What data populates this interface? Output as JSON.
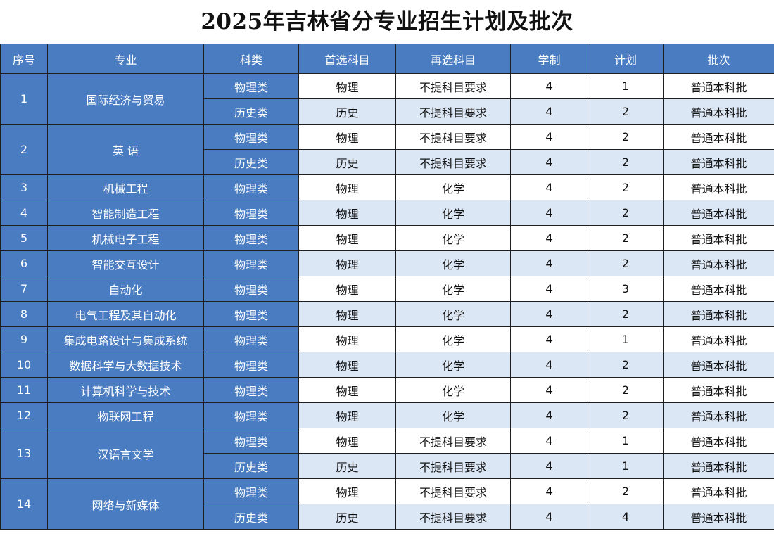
{
  "title": "2025年吉林省分专业招生计划及批次",
  "headers": [
    "序号",
    "专业",
    "科类",
    "首选科目",
    "再选科目",
    "学制",
    "计划",
    "批次"
  ],
  "rows": [
    {
      "no": "1",
      "major": "国际经济与贸易",
      "subs": [
        {
          "type": "物理类",
          "first": "物理",
          "second": "不提科目要求",
          "years": "4",
          "plan": "1",
          "batch": "普通本科批"
        },
        {
          "type": "历史类",
          "first": "历史",
          "second": "不提科目要求",
          "years": "4",
          "plan": "2",
          "batch": "普通本科批"
        }
      ]
    },
    {
      "no": "2",
      "major": "英 语",
      "subs": [
        {
          "type": "物理类",
          "first": "物理",
          "second": "不提科目要求",
          "years": "4",
          "plan": "2",
          "batch": "普通本科批"
        },
        {
          "type": "历史类",
          "first": "历史",
          "second": "不提科目要求",
          "years": "4",
          "plan": "2",
          "batch": "普通本科批"
        }
      ]
    },
    {
      "no": "3",
      "major": "机械工程",
      "subs": [
        {
          "type": "物理类",
          "first": "物理",
          "second": "化学",
          "years": "4",
          "plan": "2",
          "batch": "普通本科批"
        }
      ]
    },
    {
      "no": "4",
      "major": "智能制造工程",
      "subs": [
        {
          "type": "物理类",
          "first": "物理",
          "second": "化学",
          "years": "4",
          "plan": "2",
          "batch": "普通本科批"
        }
      ]
    },
    {
      "no": "5",
      "major": "机械电子工程",
      "subs": [
        {
          "type": "物理类",
          "first": "物理",
          "second": "化学",
          "years": "4",
          "plan": "2",
          "batch": "普通本科批"
        }
      ]
    },
    {
      "no": "6",
      "major": "智能交互设计",
      "subs": [
        {
          "type": "物理类",
          "first": "物理",
          "second": "化学",
          "years": "4",
          "plan": "2",
          "batch": "普通本科批"
        }
      ]
    },
    {
      "no": "7",
      "major": "自动化",
      "subs": [
        {
          "type": "物理类",
          "first": "物理",
          "second": "化学",
          "years": "4",
          "plan": "3",
          "batch": "普通本科批"
        }
      ]
    },
    {
      "no": "8",
      "major": "电气工程及其自动化",
      "subs": [
        {
          "type": "物理类",
          "first": "物理",
          "second": "化学",
          "years": "4",
          "plan": "2",
          "batch": "普通本科批"
        }
      ]
    },
    {
      "no": "9",
      "major": "集成电路设计与集成系统",
      "subs": [
        {
          "type": "物理类",
          "first": "物理",
          "second": "化学",
          "years": "4",
          "plan": "1",
          "batch": "普通本科批"
        }
      ]
    },
    {
      "no": "10",
      "major": "数据科学与大数据技术",
      "subs": [
        {
          "type": "物理类",
          "first": "物理",
          "second": "化学",
          "years": "4",
          "plan": "2",
          "batch": "普通本科批"
        }
      ]
    },
    {
      "no": "11",
      "major": "计算机科学与技术",
      "subs": [
        {
          "type": "物理类",
          "first": "物理",
          "second": "化学",
          "years": "4",
          "plan": "2",
          "batch": "普通本科批"
        }
      ]
    },
    {
      "no": "12",
      "major": "物联网工程",
      "subs": [
        {
          "type": "物理类",
          "first": "物理",
          "second": "化学",
          "years": "4",
          "plan": "2",
          "batch": "普通本科批"
        }
      ]
    },
    {
      "no": "13",
      "major": "汉语言文学",
      "subs": [
        {
          "type": "物理类",
          "first": "物理",
          "second": "不提科目要求",
          "years": "4",
          "plan": "1",
          "batch": "普通本科批"
        },
        {
          "type": "历史类",
          "first": "历史",
          "second": "不提科目要求",
          "years": "4",
          "plan": "1",
          "batch": "普通本科批"
        }
      ]
    },
    {
      "no": "14",
      "major": "网络与新媒体",
      "subs": [
        {
          "type": "物理类",
          "first": "物理",
          "second": "不提科目要求",
          "years": "4",
          "plan": "2",
          "batch": "普通本科批"
        },
        {
          "type": "历史类",
          "first": "历史",
          "second": "不提科目要求",
          "years": "4",
          "plan": "4",
          "batch": "普通本科批"
        }
      ]
    }
  ],
  "colors": {
    "header": "#4a7cc2",
    "stripe": "#dce7f6",
    "plain": "#ffffff"
  }
}
